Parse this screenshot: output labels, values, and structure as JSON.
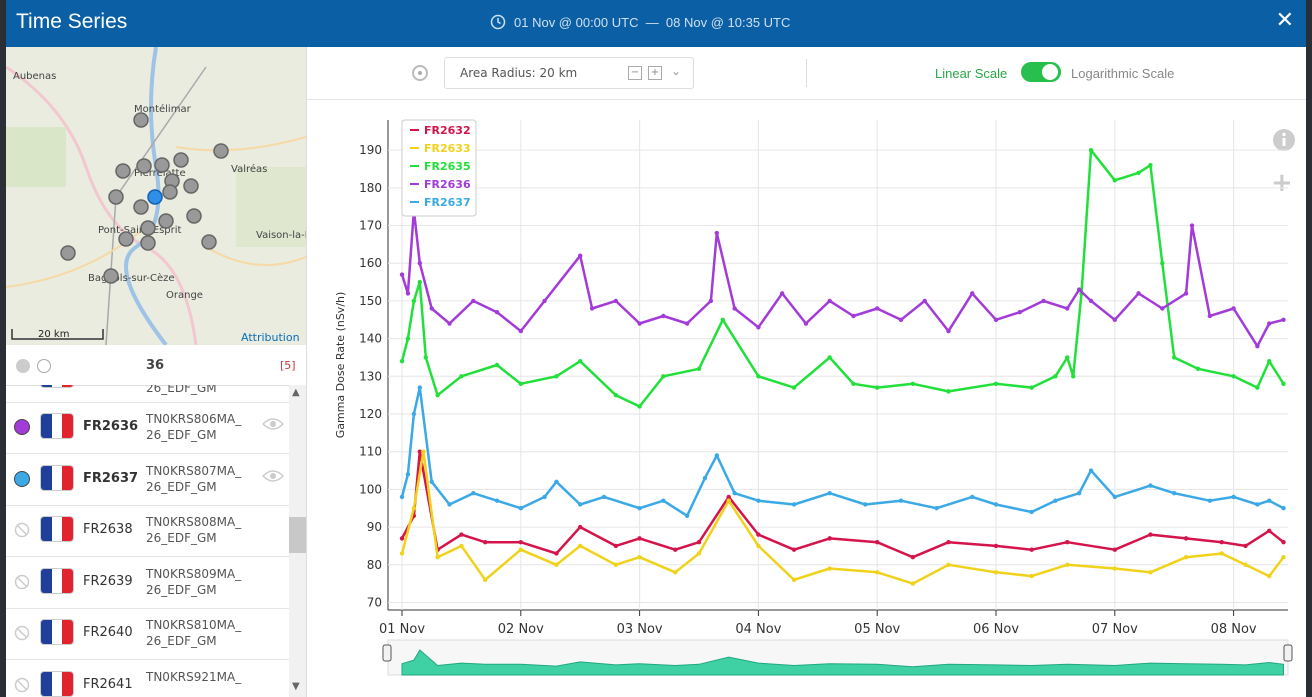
{
  "window": {
    "title": "Time Series",
    "range": "01 Nov @ 00:00 UTC  —  08 Nov @ 10:35 UTC",
    "close_label": "✕"
  },
  "map": {
    "places": [
      "Aubenas",
      "Montélimar",
      "Valréas",
      "Pierrelatte",
      "Pont-Saint-Esprit",
      "Vaison-la-Romaine",
      "Bagnols-sur-Cèze",
      "Orange"
    ],
    "scale_label": "20 km",
    "attribution": "Attribution"
  },
  "list": {
    "count": "36",
    "selected": "[5]",
    "partial_row_name": "26_EDF_GM",
    "rows": [
      {
        "code": "FR2636",
        "name1": "TN0KRS806MA_",
        "name2": "26_EDF_GM",
        "dot": "#a23bd8",
        "active": true
      },
      {
        "code": "FR2637",
        "name1": "TN0KRS807MA_",
        "name2": "26_EDF_GM",
        "dot": "#3aa9e6",
        "active": true
      },
      {
        "code": "FR2638",
        "name1": "TN0KRS808MA_",
        "name2": "26_EDF_GM",
        "dot": "",
        "active": false
      },
      {
        "code": "FR2639",
        "name1": "TN0KRS809MA_",
        "name2": "26_EDF_GM",
        "dot": "",
        "active": false
      },
      {
        "code": "FR2640",
        "name1": "TN0KRS810MA_",
        "name2": "26_EDF_GM",
        "dot": "",
        "active": false
      },
      {
        "code": "FR2641",
        "name1": "TN0KRS921MA_",
        "name2": "",
        "dot": "",
        "active": false
      }
    ]
  },
  "toolbar": {
    "radius_label": "Area Radius: 20 km",
    "linear_label": "Linear Scale",
    "log_label": "Logarithmic Scale",
    "scale_mode": "linear"
  },
  "chart_data": {
    "type": "line",
    "ylabel": "Gamma Dose Rate (nSv/h)",
    "xlabel": "",
    "ylim": [
      68,
      198
    ],
    "yticks": [
      70,
      80,
      90,
      100,
      110,
      120,
      130,
      140,
      150,
      160,
      170,
      180,
      190
    ],
    "x_range_days": [
      0,
      7.45
    ],
    "xticks": [
      {
        "day": 0,
        "label": "01 Nov"
      },
      {
        "day": 1,
        "label": "02 Nov"
      },
      {
        "day": 2,
        "label": "03 Nov"
      },
      {
        "day": 3,
        "label": "04 Nov"
      },
      {
        "day": 4,
        "label": "05 Nov"
      },
      {
        "day": 5,
        "label": "06 Nov"
      },
      {
        "day": 6,
        "label": "07 Nov"
      },
      {
        "day": 7,
        "label": "08 Nov"
      }
    ],
    "grid": true,
    "legend_placement": "top-left",
    "series": [
      {
        "name": "FR2632",
        "color": "#d4144a",
        "x": [
          0,
          0.1,
          0.15,
          0.3,
          0.5,
          0.7,
          1.0,
          1.3,
          1.5,
          1.8,
          2.0,
          2.3,
          2.5,
          2.75,
          3.0,
          3.3,
          3.6,
          4.0,
          4.3,
          4.6,
          5.0,
          5.3,
          5.6,
          6.0,
          6.3,
          6.6,
          6.9,
          7.1,
          7.3,
          7.42
        ],
        "y": [
          87,
          93,
          110,
          84,
          88,
          86,
          86,
          83,
          90,
          85,
          87,
          84,
          86,
          98,
          88,
          84,
          87,
          86,
          82,
          86,
          85,
          84,
          86,
          84,
          88,
          87,
          86,
          85,
          89,
          86
        ]
      },
      {
        "name": "FR2633",
        "color": "#f0d21a",
        "x": [
          0,
          0.1,
          0.18,
          0.3,
          0.5,
          0.7,
          1.0,
          1.3,
          1.5,
          1.8,
          2.0,
          2.3,
          2.5,
          2.75,
          3.0,
          3.3,
          3.6,
          4.0,
          4.3,
          4.6,
          5.0,
          5.3,
          5.6,
          6.0,
          6.3,
          6.6,
          6.9,
          7.1,
          7.3,
          7.42
        ],
        "y": [
          83,
          95,
          110,
          82,
          85,
          76,
          84,
          80,
          85,
          80,
          82,
          78,
          83,
          97,
          85,
          76,
          79,
          78,
          75,
          80,
          78,
          77,
          80,
          79,
          78,
          82,
          83,
          80,
          77,
          82
        ]
      },
      {
        "name": "FR2635",
        "color": "#22e03a",
        "x": [
          0,
          0.05,
          0.1,
          0.15,
          0.2,
          0.3,
          0.5,
          0.8,
          1.0,
          1.3,
          1.5,
          1.8,
          2.0,
          2.2,
          2.5,
          2.7,
          3.0,
          3.3,
          3.6,
          3.8,
          4.0,
          4.3,
          4.6,
          5.0,
          5.3,
          5.5,
          5.6,
          5.65,
          5.72,
          5.8,
          6.0,
          6.2,
          6.3,
          6.4,
          6.5,
          6.7,
          7.0,
          7.2,
          7.3,
          7.42
        ],
        "y": [
          134,
          140,
          150,
          155,
          135,
          125,
          130,
          133,
          128,
          130,
          134,
          125,
          122,
          130,
          132,
          145,
          130,
          127,
          135,
          128,
          127,
          128,
          126,
          128,
          127,
          130,
          135,
          130,
          152,
          190,
          182,
          184,
          186,
          160,
          135,
          132,
          130,
          127,
          134,
          128
        ]
      },
      {
        "name": "FR2636",
        "color": "#a23bd8",
        "x": [
          0,
          0.05,
          0.1,
          0.15,
          0.25,
          0.4,
          0.6,
          0.8,
          1.0,
          1.2,
          1.5,
          1.6,
          1.8,
          2.0,
          2.2,
          2.4,
          2.6,
          2.65,
          2.8,
          3.0,
          3.2,
          3.4,
          3.6,
          3.8,
          4.0,
          4.2,
          4.4,
          4.6,
          4.8,
          5.0,
          5.2,
          5.4,
          5.6,
          5.7,
          5.8,
          6.0,
          6.2,
          6.4,
          6.6,
          6.65,
          6.8,
          7.0,
          7.2,
          7.3,
          7.42
        ],
        "y": [
          157,
          152,
          174,
          160,
          148,
          144,
          150,
          147,
          142,
          150,
          162,
          148,
          150,
          144,
          146,
          144,
          150,
          168,
          148,
          143,
          152,
          144,
          150,
          146,
          148,
          145,
          150,
          142,
          152,
          145,
          147,
          150,
          148,
          153,
          150,
          145,
          152,
          148,
          152,
          170,
          146,
          148,
          138,
          144,
          145
        ]
      },
      {
        "name": "FR2637",
        "color": "#3aa9e6",
        "x": [
          0,
          0.05,
          0.1,
          0.15,
          0.25,
          0.4,
          0.6,
          0.8,
          1.0,
          1.2,
          1.3,
          1.5,
          1.7,
          2.0,
          2.2,
          2.4,
          2.55,
          2.65,
          2.8,
          3.0,
          3.3,
          3.6,
          3.9,
          4.2,
          4.5,
          4.8,
          5.0,
          5.3,
          5.5,
          5.7,
          5.8,
          6.0,
          6.3,
          6.5,
          6.8,
          7.0,
          7.2,
          7.3,
          7.42
        ],
        "y": [
          98,
          104,
          120,
          127,
          102,
          96,
          99,
          97,
          95,
          98,
          102,
          96,
          98,
          95,
          97,
          93,
          103,
          109,
          99,
          97,
          96,
          99,
          96,
          97,
          95,
          98,
          96,
          94,
          97,
          99,
          105,
          98,
          101,
          99,
          97,
          98,
          96,
          97,
          95
        ]
      }
    ],
    "navigator_series": "FR2632"
  }
}
